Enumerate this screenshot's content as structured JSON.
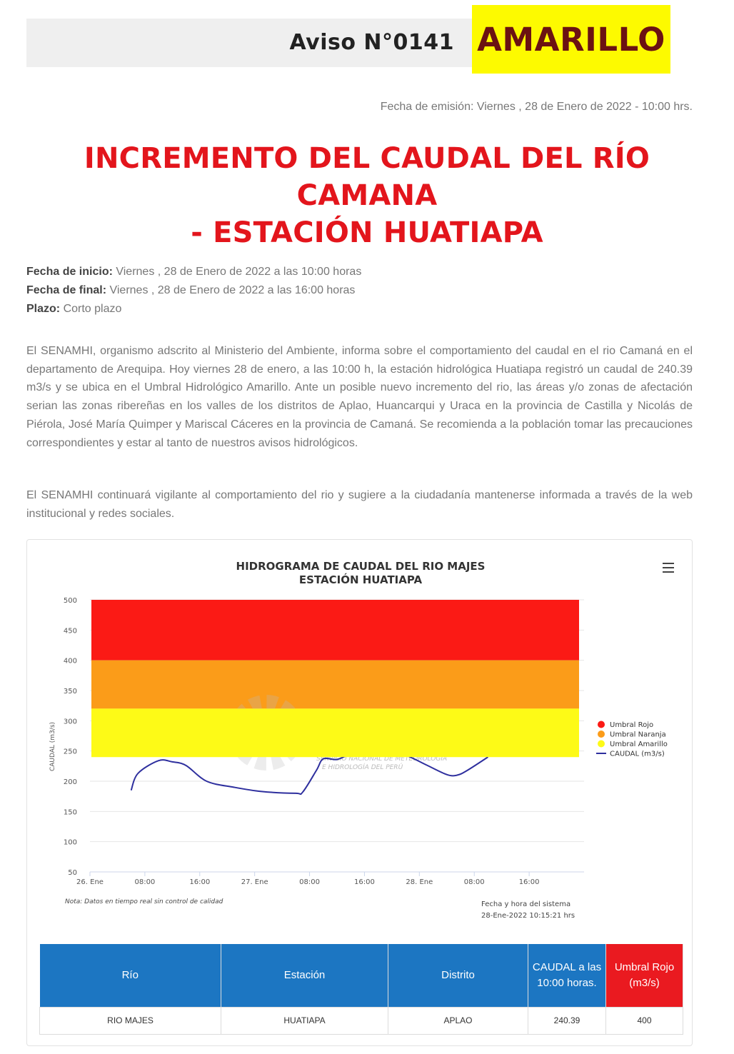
{
  "header": {
    "aviso": "Aviso N°0141",
    "level": "AMARILLO"
  },
  "emision": "Fecha de emisión: Viernes , 28 de Enero de 2022 - 10:00 hrs.",
  "title_line1": "INCREMENTO DEL CAUDAL DEL RÍO CAMANA",
  "title_line2": "- ESTACIÓN HUATIAPA",
  "meta": {
    "inicio_label": "Fecha de inicio:",
    "inicio_value": " Viernes , 28 de Enero de 2022 a las 10:00 horas",
    "final_label": "Fecha de final:",
    "final_value": " Viernes , 28 de Enero de 2022 a las 16:00 horas",
    "plazo_label": "Plazo:",
    "plazo_value": " Corto plazo"
  },
  "paragraph1": "El SENAMHI, organismo adscrito al Ministerio del Ambiente, informa sobre el comportamiento del caudal en el rio Camaná en el departamento de Arequipa. Hoy viernes 28 de enero, a las 10:00 h, la estación hidrológica Huatiapa registró un caudal de 240.39 m3/s y se ubica en el Umbral Hidrológico Amarillo. Ante un posible nuevo incremento del rio, las áreas y/o zonas de afectación serian las zonas ribereñas en los valles de los distritos de Aplao, Huancarqui y Uraca en la provincia de Castilla y Nicolás de Piérola, José María Quimper y Mariscal Cáceres en la provincia de Camaná. Se recomienda a la población tomar las precauciones correspondientes y estar al tanto de nuestros avisos hidrológicos.",
  "paragraph2": "El SENAMHI continuará vigilante al comportamiento del rio y sugiere a la ciudadanía mantenerse informada a través de la web institucional y redes sociales.",
  "chart_data": {
    "type": "line",
    "title": "HIDROGRAMA DE CAUDAL DEL RIO MAJES",
    "subtitle": "ESTACIÓN HUATIAPA",
    "ylabel": "CAUDAL (m3/s)",
    "ylim": [
      50,
      500
    ],
    "yticks": [
      50,
      100,
      150,
      200,
      250,
      300,
      350,
      400,
      450,
      500
    ],
    "x_unit": "hours since 26 Ene 00:00",
    "xlim": [
      0,
      72
    ],
    "xticks": [
      {
        "x": 0,
        "label": "26. Ene"
      },
      {
        "x": 8,
        "label": "08:00"
      },
      {
        "x": 16,
        "label": "16:00"
      },
      {
        "x": 24,
        "label": "27. Ene"
      },
      {
        "x": 32,
        "label": "08:00"
      },
      {
        "x": 40,
        "label": "16:00"
      },
      {
        "x": 48,
        "label": "28. Ene"
      },
      {
        "x": 56,
        "label": "08:00"
      },
      {
        "x": 64,
        "label": "16:00"
      }
    ],
    "bands": [
      {
        "name": "Umbral Rojo",
        "from": 400,
        "to": 500,
        "color": "#fb1a15"
      },
      {
        "name": "Umbral Naranja",
        "from": 320,
        "to": 400,
        "color": "#fb9c19"
      },
      {
        "name": "Umbral Amarillo",
        "from": 240,
        "to": 320,
        "color": "#fdfa17"
      }
    ],
    "series": [
      {
        "name": "CAUDAL (m3/s)",
        "color": "#2e2f9e",
        "points": [
          [
            6,
            185
          ],
          [
            7,
            213
          ],
          [
            10,
            234
          ],
          [
            12,
            232
          ],
          [
            14,
            226
          ],
          [
            17,
            200
          ],
          [
            21,
            190
          ],
          [
            25,
            183
          ],
          [
            30,
            180
          ],
          [
            31,
            182
          ],
          [
            33,
            218
          ],
          [
            34,
            237
          ],
          [
            36,
            236
          ],
          [
            38,
            246
          ],
          [
            40,
            259
          ],
          [
            42,
            256
          ],
          [
            46,
            243
          ],
          [
            49,
            227
          ],
          [
            52,
            211
          ],
          [
            53.5,
            210
          ],
          [
            55,
            218
          ],
          [
            58,
            240
          ]
        ]
      }
    ],
    "legend": [
      "Umbral Rojo",
      "Umbral Naranja",
      "Umbral Amarillo",
      "CAUDAL (m3/s)"
    ],
    "legend_position": "right",
    "note": "Nota: Datos en tiempo real sin control de calidad",
    "system_time_label": "Fecha y hora del sistema",
    "system_time_value": "28-Ene-2022 10:15:21 hrs",
    "watermark": "Senamhi",
    "watermark_sub1": "SERVICIO NACIONAL DE METEOROLOGÍA",
    "watermark_sub2": "E HIDROLOGÍA DEL PERÚ"
  },
  "table": {
    "headers": [
      "Río",
      "Estación",
      "Distrito",
      "CAUDAL a las 10:00 horas.",
      "Umbral Rojo (m3/s)"
    ],
    "row": [
      "RIO MAJES",
      "HUATIAPA",
      "APLAO",
      "240.39",
      "400"
    ],
    "header_color": "#1c76c2",
    "header_red": "#ea1a20"
  }
}
